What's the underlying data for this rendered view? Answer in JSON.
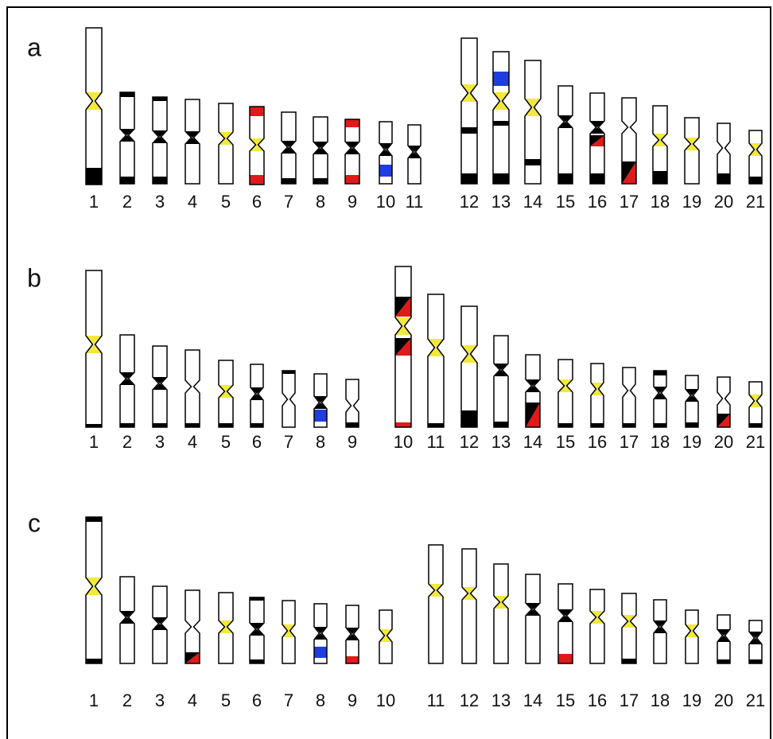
{
  "panels": [
    {
      "label": "a",
      "chromosomes": [
        "1",
        "2",
        "3",
        "4",
        "5",
        "6",
        "7",
        "8",
        "9",
        "10",
        "11",
        "12",
        "13",
        "14",
        "15",
        "16",
        "17",
        "18",
        "19",
        "20",
        "21"
      ]
    },
    {
      "label": "b",
      "chromosomes": [
        "1",
        "2",
        "3",
        "4",
        "5",
        "6",
        "7",
        "8",
        "9",
        "10",
        "11",
        "12",
        "13",
        "14",
        "15",
        "16",
        "17",
        "18",
        "19",
        "20",
        "21"
      ]
    },
    {
      "label": "c",
      "chromosomes": [
        "1",
        "2",
        "3",
        "4",
        "5",
        "6",
        "7",
        "8",
        "9",
        "10",
        "11",
        "12",
        "13",
        "14",
        "15",
        "16",
        "17",
        "18",
        "19",
        "20",
        "21"
      ]
    }
  ]
}
